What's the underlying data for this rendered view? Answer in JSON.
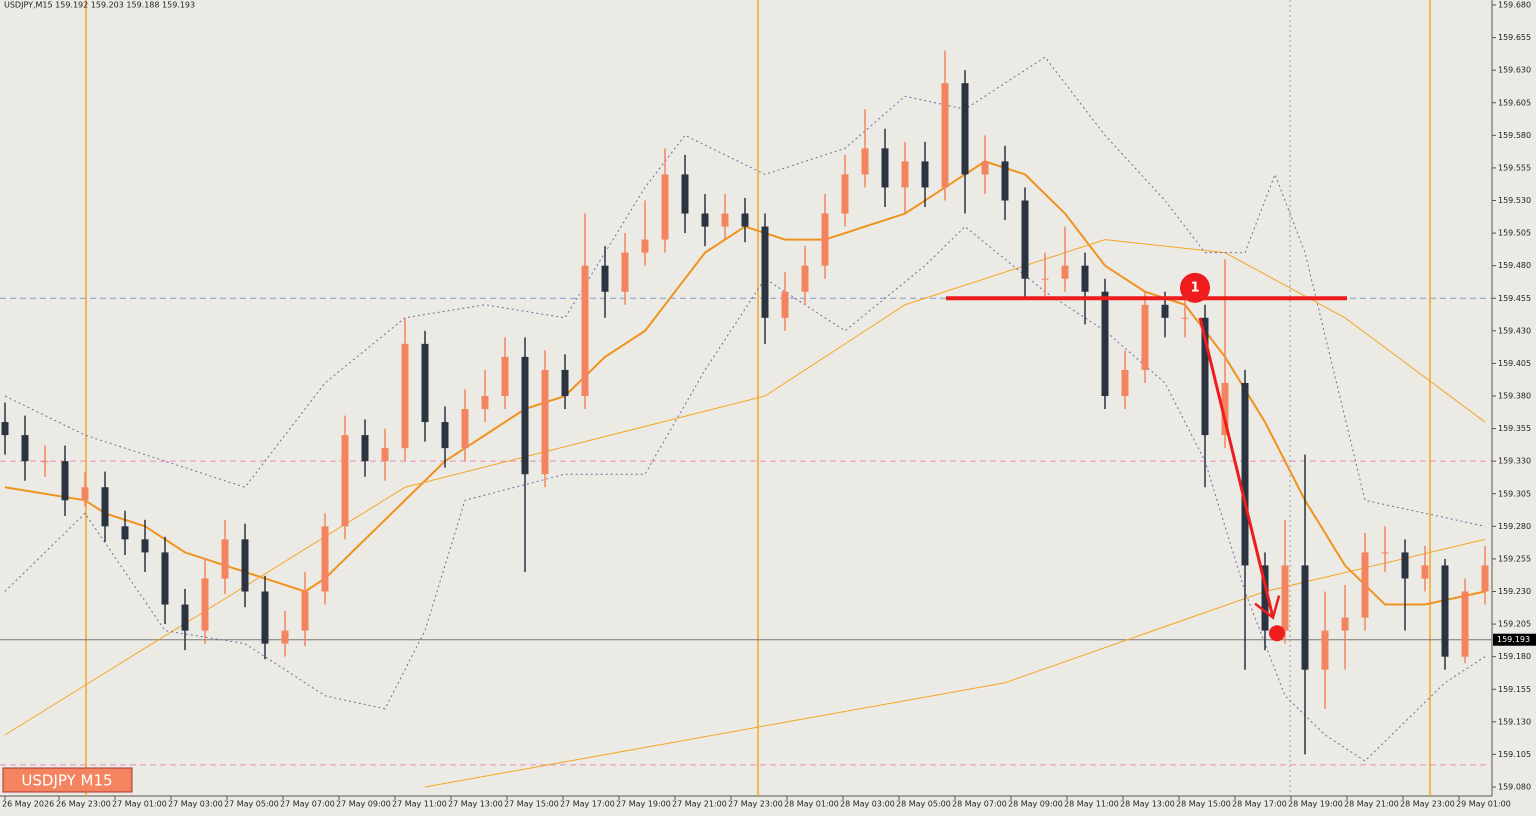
{
  "chart_data": {
    "type": "candlestick",
    "title": "USDJPY,M15  159.192 159.203 159.188 159.193",
    "symbol_label": "USDJPY M15",
    "last_price": 159.193,
    "colors": {
      "up": "#f4845f",
      "down": "#2b3240",
      "background": "#ebeae5"
    },
    "ylim": [
      159.08,
      159.68
    ],
    "yticks": [
      {
        "value": 159.68,
        "label": "159.680"
      },
      159.655,
      {
        "value": 159.63,
        "label": "159.630"
      },
      159.605,
      {
        "value": 159.58,
        "label": "159.580"
      },
      159.555,
      {
        "value": 159.53,
        "label": "159.530"
      },
      159.505,
      {
        "value": 159.48,
        "label": "159.480"
      },
      159.455,
      {
        "value": 159.43,
        "label": "159.430"
      },
      159.405,
      {
        "value": 159.38,
        "label": "159.380"
      },
      159.355,
      {
        "value": 159.33,
        "label": "159.330"
      },
      159.305,
      {
        "value": 159.28,
        "label": "159.280"
      },
      159.255,
      {
        "value": 159.23,
        "label": "159.230"
      },
      159.205,
      {
        "value": 159.18,
        "label": "159.180"
      },
      159.155,
      {
        "value": 159.13,
        "label": "159.130"
      },
      159.105,
      {
        "value": 159.08,
        "label": "159.080"
      }
    ],
    "xticks": [
      {
        "value": 0,
        "label": "26 May 2026"
      },
      {
        "value": 2.7,
        "label": "26 May 23:00"
      },
      {
        "value": 5.5,
        "label": "27 May 01:00"
      },
      {
        "value": 8.3,
        "label": "27 May 03:00"
      },
      {
        "value": 11.1,
        "label": "27 May 05:00"
      },
      {
        "value": 13.9,
        "label": "27 May 07:00"
      },
      {
        "value": 16.7,
        "label": "27 May 09:00"
      },
      {
        "value": 19.5,
        "label": "27 May 11:00"
      },
      {
        "value": 22.3,
        "label": "27 May 13:00"
      },
      {
        "value": 25.1,
        "label": "27 May 15:00"
      },
      {
        "value": 27.9,
        "label": "27 May 17:00"
      },
      {
        "value": 30.7,
        "label": "27 May 19:00"
      },
      {
        "value": 33.5,
        "label": "27 May 21:00"
      },
      {
        "value": 36.3,
        "label": "27 May 23:00"
      },
      {
        "value": 39.1,
        "label": "28 May 01:00"
      },
      {
        "value": 41.9,
        "label": "28 May 03:00"
      },
      {
        "value": 44.7,
        "label": "28 May 05:00"
      },
      {
        "value": 47.5,
        "label": "28 May 07:00"
      },
      {
        "value": 50.3,
        "label": "28 May 09:00"
      },
      {
        "value": 53.1,
        "label": "28 May 11:00"
      },
      {
        "value": 55.9,
        "label": "28 May 13:00"
      },
      {
        "value": 58.7,
        "label": "28 May 15:00"
      },
      {
        "value": 61.5,
        "label": "28 May 17:00"
      },
      {
        "value": 64.3,
        "label": "28 May 19:00"
      },
      {
        "value": 67.1,
        "label": "28 May 21:00"
      },
      {
        "value": 69.9,
        "label": "28 May 23:00"
      },
      {
        "value": 72.7,
        "label": "29 May 01:00"
      }
    ],
    "open": [
      159.36,
      159.35,
      159.33,
      159.33,
      159.3,
      159.31,
      159.28,
      159.27,
      159.26,
      159.22,
      159.2,
      159.24,
      159.27,
      159.23,
      159.19,
      159.2,
      159.23,
      159.28,
      159.35,
      159.33,
      159.34,
      159.42,
      159.36,
      159.34,
      159.37,
      159.38,
      159.41,
      159.32,
      159.4,
      159.38,
      159.48,
      159.46,
      159.49,
      159.5,
      159.55,
      159.52,
      159.51,
      159.52,
      159.51,
      159.44,
      159.46,
      159.48,
      159.52,
      159.55,
      159.57,
      159.54,
      159.56,
      159.54,
      159.62,
      159.55,
      159.56,
      159.53,
      159.47,
      159.47,
      159.48,
      159.46,
      159.38,
      159.4,
      159.45,
      159.44,
      159.44,
      159.35,
      159.39,
      159.25,
      159.2,
      159.25,
      159.17,
      159.2,
      159.21,
      159.26,
      159.26,
      159.24,
      159.25,
      159.18,
      159.23
    ],
    "high": [
      159.375,
      159.365,
      159.342,
      159.342,
      159.322,
      159.322,
      159.292,
      159.285,
      159.272,
      159.232,
      159.255,
      159.285,
      159.282,
      159.242,
      159.215,
      159.245,
      159.29,
      159.365,
      159.362,
      159.355,
      159.44,
      159.43,
      159.372,
      159.385,
      159.4,
      159.425,
      159.425,
      159.415,
      159.412,
      159.52,
      159.495,
      159.505,
      159.53,
      159.57,
      159.565,
      159.535,
      159.535,
      159.532,
      159.52,
      159.475,
      159.495,
      159.535,
      159.565,
      159.6,
      159.585,
      159.575,
      159.575,
      159.645,
      159.63,
      159.58,
      159.572,
      159.54,
      159.49,
      159.51,
      159.49,
      159.47,
      159.415,
      159.46,
      159.46,
      159.46,
      159.45,
      159.485,
      159.4,
      159.26,
      159.285,
      159.335,
      159.23,
      159.235,
      159.275,
      159.28,
      159.27,
      159.265,
      159.255,
      159.24,
      159.265
    ],
    "low": [
      159.335,
      159.315,
      159.318,
      159.288,
      159.295,
      159.268,
      159.258,
      159.245,
      159.205,
      159.185,
      159.19,
      159.228,
      159.218,
      159.178,
      159.18,
      159.188,
      159.22,
      159.27,
      159.318,
      159.315,
      159.33,
      159.345,
      159.325,
      159.33,
      159.36,
      159.37,
      159.245,
      159.31,
      159.37,
      159.37,
      159.44,
      159.45,
      159.48,
      159.49,
      159.505,
      159.495,
      159.5,
      159.498,
      159.42,
      159.43,
      159.45,
      159.47,
      159.51,
      159.54,
      159.525,
      159.52,
      159.525,
      159.53,
      159.52,
      159.535,
      159.515,
      159.455,
      159.455,
      159.46,
      159.435,
      159.37,
      159.37,
      159.39,
      159.425,
      159.425,
      159.31,
      159.34,
      159.17,
      159.185,
      159.19,
      159.105,
      159.14,
      159.17,
      159.2,
      159.245,
      159.2,
      159.23,
      159.17,
      159.175,
      159.22
    ],
    "close": [
      159.35,
      159.33,
      159.33,
      159.3,
      159.31,
      159.28,
      159.27,
      159.26,
      159.22,
      159.2,
      159.24,
      159.27,
      159.23,
      159.19,
      159.2,
      159.23,
      159.28,
      159.35,
      159.33,
      159.34,
      159.42,
      159.36,
      159.34,
      159.37,
      159.38,
      159.41,
      159.32,
      159.4,
      159.38,
      159.48,
      159.46,
      159.49,
      159.5,
      159.55,
      159.52,
      159.51,
      159.52,
      159.51,
      159.44,
      159.46,
      159.48,
      159.52,
      159.55,
      159.57,
      159.54,
      159.56,
      159.54,
      159.62,
      159.55,
      159.56,
      159.53,
      159.47,
      159.47,
      159.48,
      159.46,
      159.38,
      159.4,
      159.45,
      159.44,
      159.44,
      159.35,
      159.39,
      159.25,
      159.2,
      159.25,
      159.17,
      159.2,
      159.21,
      159.26,
      159.26,
      159.24,
      159.25,
      159.18,
      159.23,
      159.25
    ],
    "overlays": [
      {
        "color": "#f0921e",
        "width": 2,
        "dash": false,
        "x": [
          0,
          4,
          5,
          7,
          9,
          11,
          13,
          15,
          16,
          18,
          20,
          22,
          24,
          26,
          28,
          30,
          32,
          34,
          35,
          37,
          39,
          41,
          43,
          45,
          47,
          49,
          51,
          53,
          55,
          57,
          59,
          61,
          63,
          65,
          67,
          69,
          71,
          74
        ],
        "values": [
          159.31,
          159.3,
          159.29,
          159.28,
          159.26,
          159.25,
          159.24,
          159.23,
          159.24,
          159.27,
          159.3,
          159.33,
          159.35,
          159.37,
          159.38,
          159.41,
          159.43,
          159.47,
          159.49,
          159.51,
          159.5,
          159.5,
          159.51,
          159.52,
          159.54,
          159.56,
          159.55,
          159.52,
          159.48,
          159.46,
          159.45,
          159.41,
          159.36,
          159.3,
          159.25,
          159.22,
          159.22,
          159.23
        ]
      },
      {
        "color": "#f5a623",
        "width": 1,
        "dash": false,
        "x": [
          0,
          20,
          38,
          45,
          55,
          61,
          67,
          74
        ],
        "values": [
          159.12,
          159.31,
          159.38,
          159.45,
          159.5,
          159.49,
          159.44,
          159.36
        ]
      },
      {
        "color": "#f5a623",
        "width": 1,
        "dash": false,
        "x": [
          21,
          50,
          63,
          74
        ],
        "values": [
          159.08,
          159.16,
          159.23,
          159.27
        ]
      },
      {
        "color": "#6b6fa0",
        "width": 1,
        "dash": true,
        "x": [
          0,
          4,
          8,
          12,
          16,
          20,
          24,
          28,
          32,
          34,
          38,
          42,
          45,
          48,
          52,
          55,
          58,
          60,
          62,
          63.5,
          65,
          68,
          71,
          74
        ],
        "values": [
          159.38,
          159.35,
          159.33,
          159.31,
          159.39,
          159.44,
          159.45,
          159.44,
          159.54,
          159.58,
          159.55,
          159.57,
          159.61,
          159.6,
          159.64,
          159.58,
          159.53,
          159.49,
          159.49,
          159.55,
          159.49,
          159.3,
          159.29,
          159.28
        ]
      },
      {
        "color": "#6b6fa0",
        "width": 1,
        "dash": true,
        "x": [
          0,
          4,
          8,
          12,
          16,
          19,
          21,
          23,
          28,
          32,
          35,
          38,
          42,
          46,
          48,
          52,
          55,
          58,
          60,
          62,
          64,
          66,
          68,
          70,
          72,
          74
        ],
        "values": [
          159.23,
          159.29,
          159.2,
          159.19,
          159.15,
          159.14,
          159.2,
          159.3,
          159.32,
          159.32,
          159.4,
          159.47,
          159.43,
          159.48,
          159.51,
          159.46,
          159.43,
          159.39,
          159.33,
          159.23,
          159.15,
          159.12,
          159.1,
          159.13,
          159.16,
          159.18
        ]
      }
    ],
    "hlines": [
      {
        "value": 159.455,
        "color": "#7f9cc9"
      },
      {
        "value": 159.33,
        "color": "#e58fb3"
      },
      {
        "value": 159.097,
        "color": "#e58fb3"
      }
    ],
    "vlines": [
      {
        "value": 4.05,
        "color": "#f5a623",
        "dash": false
      },
      {
        "value": 37.65,
        "color": "#f5a623",
        "dash": false
      },
      {
        "value": 71.25,
        "color": "#f5a623",
        "dash": false
      },
      {
        "value": 64.25,
        "color": "#9a9a9a",
        "dash": true
      }
    ],
    "annotation": {
      "color": "#ee1c1c",
      "level": {
        "x": [
          47.05,
          67.1
        ],
        "y": 159.455
      },
      "marker": {
        "x": 59.5,
        "y": 159.463,
        "label": "1"
      },
      "arrow": {
        "x": [
          59.75,
          63.4
        ],
        "y": [
          159.44,
          159.21
        ]
      },
      "dot": {
        "x": 63.6,
        "y": 159.198
      }
    }
  }
}
